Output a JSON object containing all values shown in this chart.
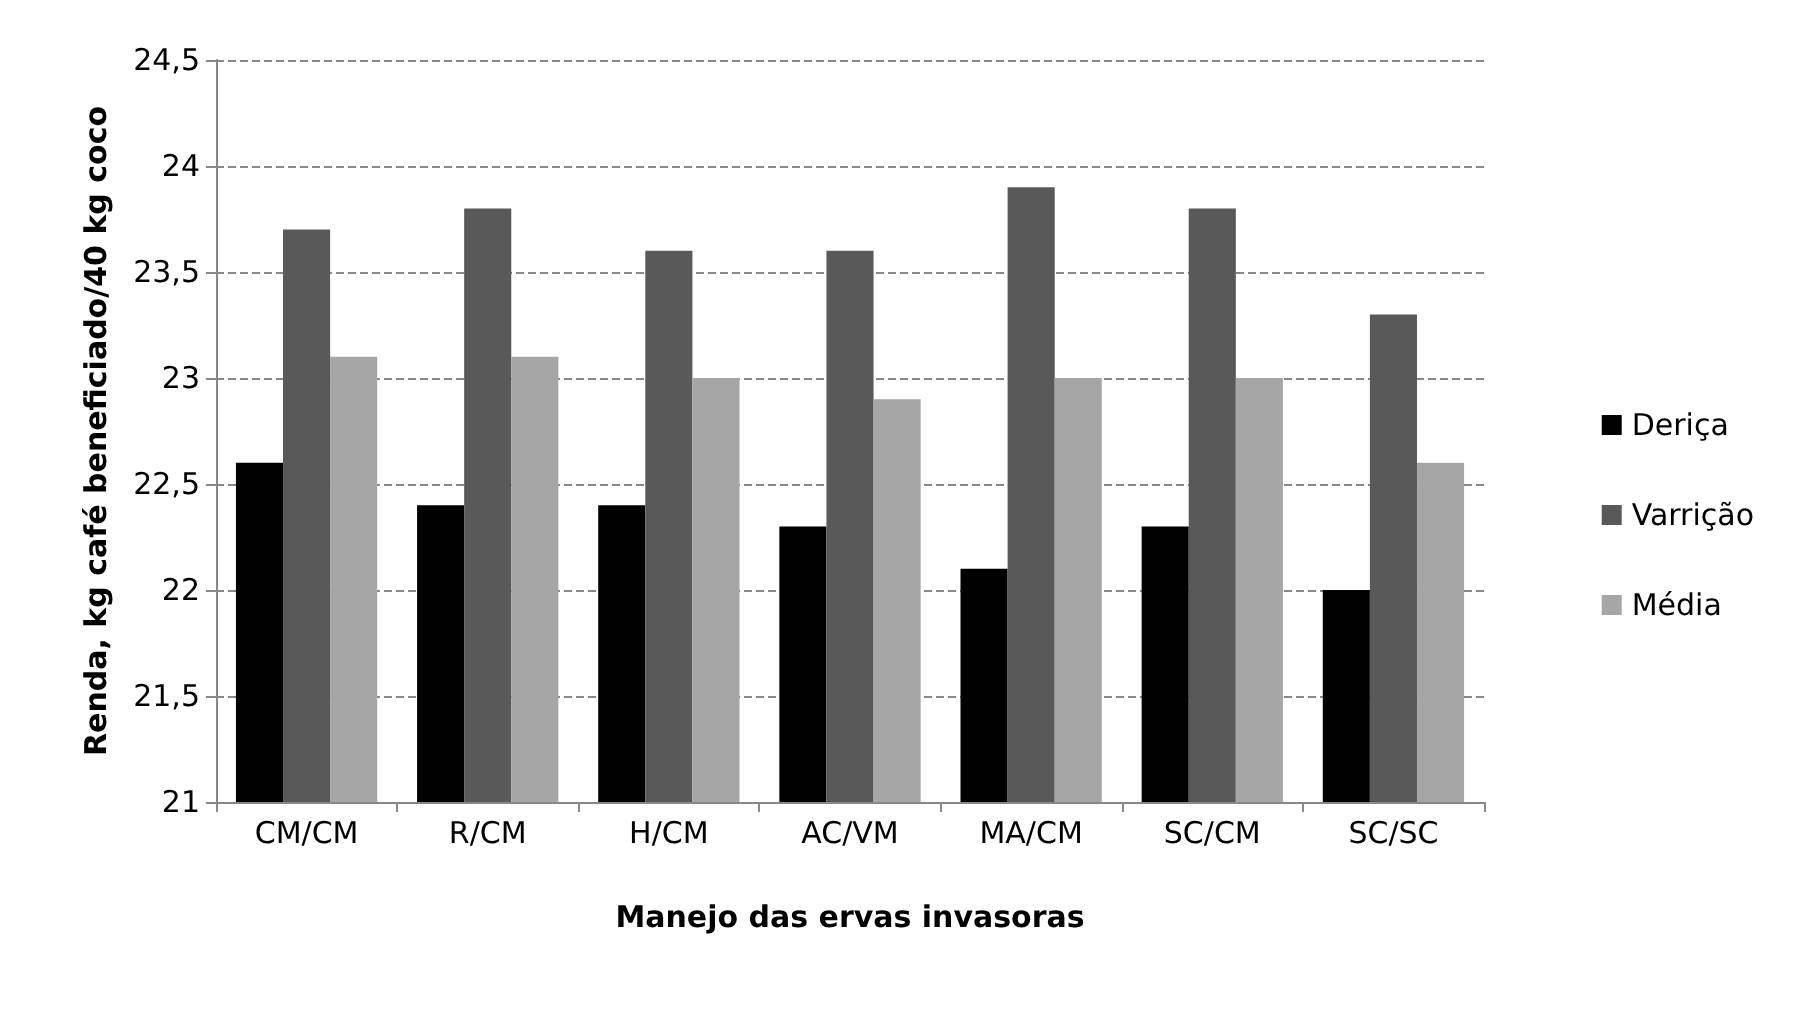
{
  "chart_data": {
    "type": "bar",
    "xlabel": "Manejo das ervas invasoras",
    "ylabel": "Renda, kg café beneficiado/40 kg coco",
    "categories": [
      "CM/CM",
      "R/CM",
      "H/CM",
      "AC/VM",
      "MA/CM",
      "SC/CM",
      "SC/SC"
    ],
    "series": [
      {
        "name": "Deriça",
        "color": "#000000",
        "values": [
          22.6,
          22.4,
          22.4,
          22.3,
          22.1,
          22.3,
          22.0
        ]
      },
      {
        "name": "Varrição",
        "color": "#595959",
        "values": [
          23.7,
          23.8,
          23.6,
          23.6,
          23.9,
          23.8,
          23.3
        ]
      },
      {
        "name": "Média",
        "color": "#a6a6a6",
        "values": [
          23.1,
          23.1,
          23.0,
          22.9,
          23.0,
          23.0,
          22.6
        ]
      }
    ],
    "ylim": [
      21,
      24.5
    ],
    "yticks": [
      21,
      {
        "value": 21.5,
        "label": "21,5"
      },
      22,
      {
        "value": 22.5,
        "label": "22,5"
      },
      23,
      {
        "value": 23.5,
        "label": "23,5"
      },
      24,
      {
        "value": 24.5,
        "label": "24,5"
      }
    ],
    "grid": "y",
    "legend": "right"
  }
}
